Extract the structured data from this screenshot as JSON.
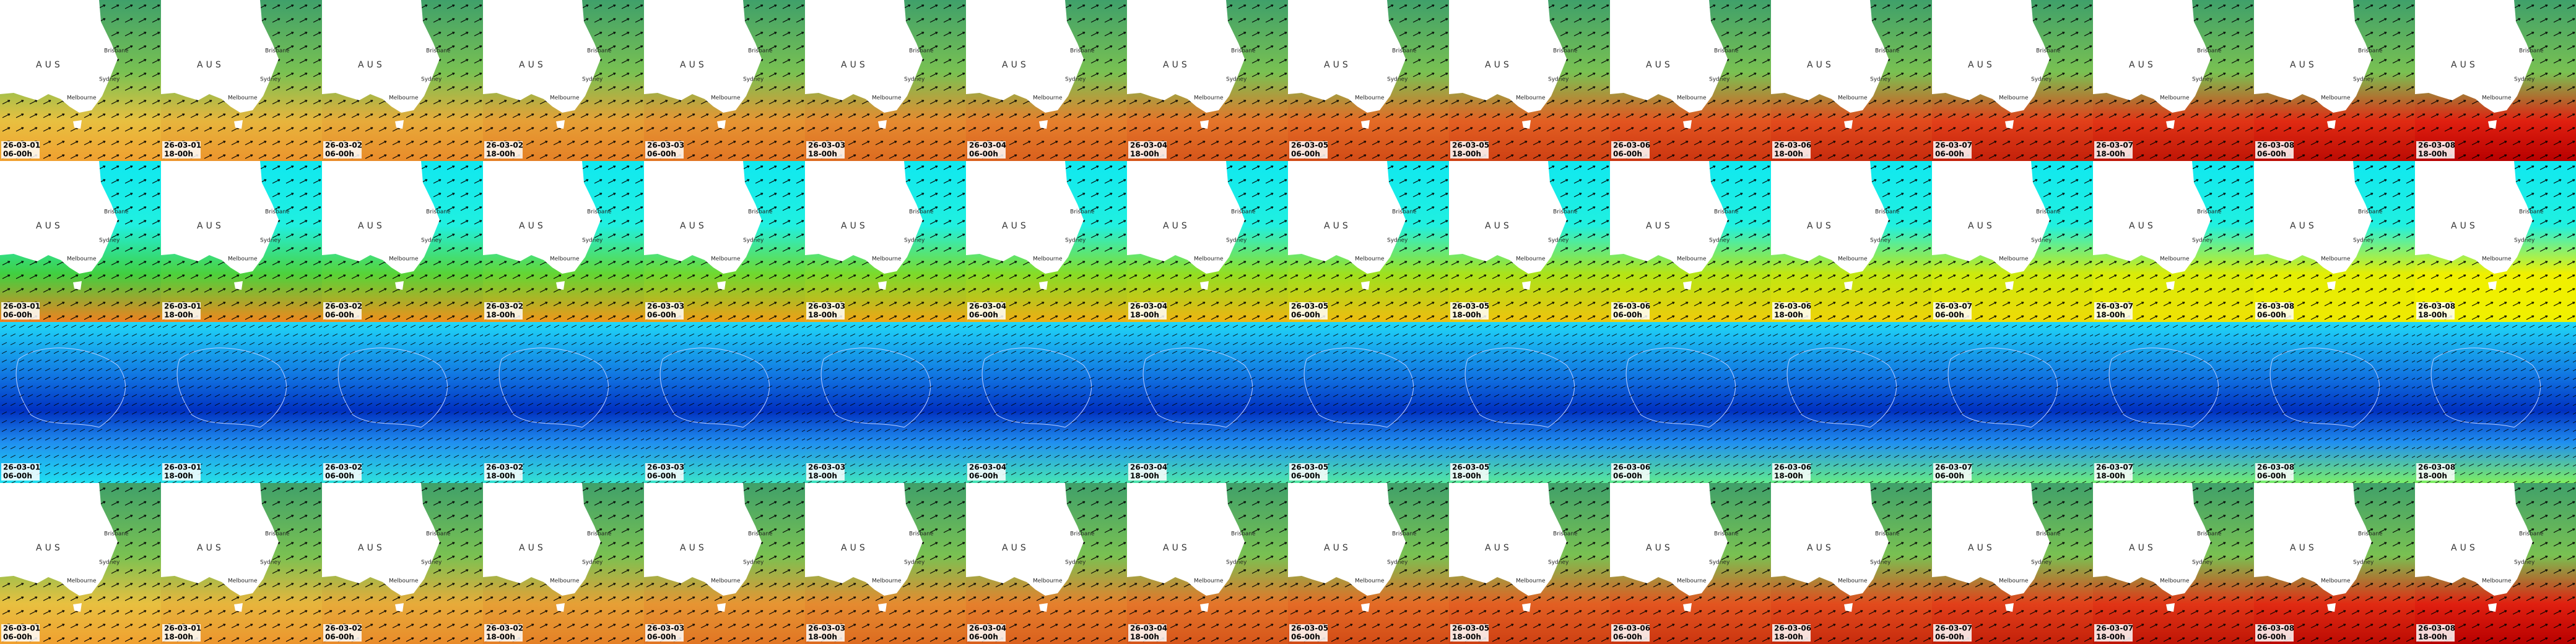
{
  "frames": [
    {
      "date": "26-03-01",
      "time": "06-00h"
    },
    {
      "date": "26-03-01",
      "time": "18-00h"
    },
    {
      "date": "26-03-02",
      "time": "06-00h"
    },
    {
      "date": "26-03-02",
      "time": "18-00h"
    },
    {
      "date": "26-03-03",
      "time": "06-00h"
    },
    {
      "date": "26-03-03",
      "time": "18-00h"
    },
    {
      "date": "26-03-04",
      "time": "06-00h"
    },
    {
      "date": "26-03-04",
      "time": "18-00h"
    },
    {
      "date": "26-03-05",
      "time": "06-00h"
    },
    {
      "date": "26-03-05",
      "time": "18-00h"
    },
    {
      "date": "26-03-06",
      "time": "06-00h"
    },
    {
      "date": "26-03-06",
      "time": "18-00h"
    },
    {
      "date": "26-03-07",
      "time": "06-00h"
    },
    {
      "date": "26-03-07",
      "time": "18-00h"
    },
    {
      "date": "26-03-08",
      "time": "06-00h"
    },
    {
      "date": "26-03-08",
      "time": "18-00h"
    }
  ],
  "place_labels": {
    "country": "AUS",
    "cities": [
      "Brisbane",
      "Sydney",
      "Melbourne"
    ]
  }
}
